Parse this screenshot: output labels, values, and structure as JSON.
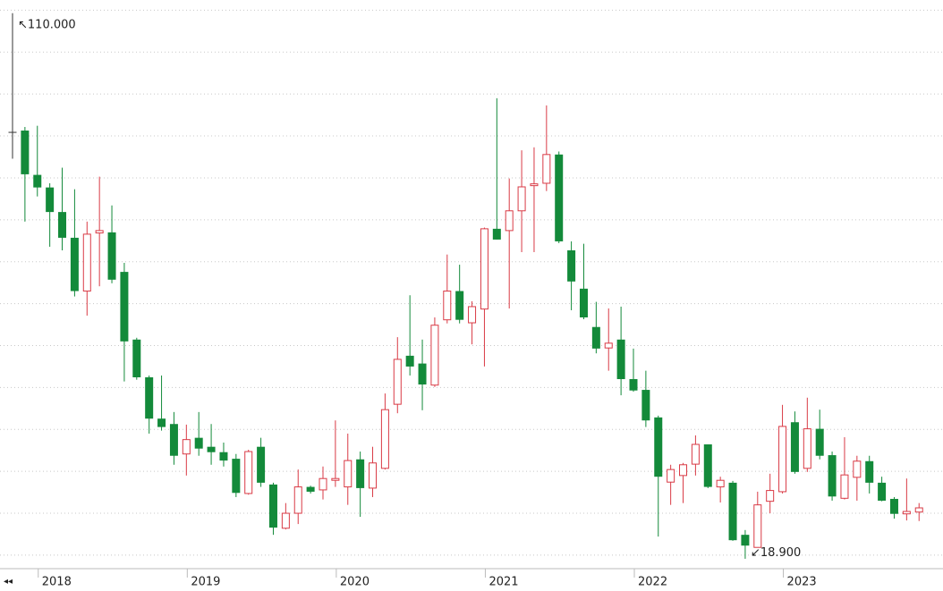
{
  "chart_data": {
    "type": "candlestick",
    "categories": [
      null,
      null,
      "2018",
      null,
      null,
      null,
      null,
      null,
      null,
      null,
      null,
      null,
      null,
      null,
      "2019",
      null,
      null,
      null,
      null,
      null,
      null,
      null,
      null,
      null,
      null,
      null,
      "2020",
      null,
      null,
      null,
      null,
      null,
      null,
      null,
      null,
      null,
      null,
      null,
      "2021",
      null,
      null,
      null,
      null,
      null,
      null,
      null,
      null,
      null,
      null,
      null,
      "2022",
      null,
      null,
      null,
      null,
      null,
      null,
      null,
      null,
      null,
      null,
      null,
      "2023",
      null,
      null,
      null,
      null,
      null,
      null,
      null,
      null,
      null,
      null,
      null
    ],
    "open": [
      90.1,
      90.4,
      83.0,
      80.9,
      76.8,
      72.5,
      63.6,
      73.3,
      73.4,
      66.8,
      55.5,
      49.2,
      42.3,
      41.4,
      36.4,
      39.1,
      37.6,
      36.7,
      35.6,
      29.8,
      37.6,
      31.3,
      24.0,
      26.5,
      30.9,
      30.4,
      32.0,
      30.9,
      35.5,
      30.7,
      34.0,
      44.7,
      52.8,
      51.5,
      47.9,
      58.8,
      63.6,
      58.3,
      60.6,
      74.0,
      73.7,
      77.0,
      81.2,
      81.6,
      86.4,
      70.4,
      64.0,
      57.6,
      54.1,
      55.5,
      48.9,
      47.1,
      42.5,
      31.7,
      32.8,
      34.7,
      38.0,
      30.9,
      31.6,
      22.9,
      20.8,
      28.5,
      30.1,
      41.7,
      34.0,
      40.6,
      36.2,
      29.0,
      32.5,
      35.2,
      31.6,
      28.9,
      26.4,
      26.7
    ],
    "high": [
      110.0,
      91.0,
      91.2,
      81.6,
      84.2,
      80.6,
      75.2,
      82.7,
      77.9,
      68.3,
      55.8,
      49.5,
      49.5,
      43.4,
      41.3,
      43.4,
      41.4,
      38.3,
      36.4,
      37.1,
      39.1,
      31.6,
      28.2,
      33.8,
      31.1,
      34.3,
      42.0,
      39.8,
      36.8,
      37.6,
      46.5,
      55.9,
      62.9,
      55.5,
      59.2,
      69.7,
      68.0,
      61.9,
      74.2,
      95.8,
      82.4,
      87.1,
      87.6,
      94.6,
      86.9,
      71.9,
      71.5,
      61.8,
      60.7,
      61.0,
      54.0,
      50.3,
      42.8,
      34.6,
      34.9,
      39.5,
      38.0,
      32.6,
      31.9,
      23.7,
      30.1,
      33.1,
      44.6,
      43.5,
      45.8,
      43.8,
      36.8,
      39.2,
      36.1,
      36.1,
      32.6,
      29.2,
      32.3,
      28.2
    ],
    "low": [
      85.7,
      75.2,
      79.4,
      71.0,
      70.4,
      62.7,
      59.5,
      64.4,
      64.9,
      48.5,
      48.8,
      39.8,
      40.3,
      34.6,
      32.8,
      36.1,
      34.6,
      34.3,
      29.2,
      29.6,
      30.9,
      22.9,
      23.8,
      24.7,
      29.8,
      28.8,
      30.9,
      27.9,
      25.9,
      29.2,
      33.8,
      43.2,
      49.5,
      43.7,
      47.6,
      58.2,
      58.2,
      54.7,
      51.0,
      72.2,
      60.7,
      70.1,
      70.1,
      80.3,
      71.6,
      60.4,
      58.9,
      53.2,
      50.3,
      46.2,
      46.8,
      40.9,
      22.6,
      27.9,
      28.2,
      32.8,
      30.7,
      28.3,
      21.9,
      18.9,
      20.8,
      26.5,
      29.8,
      33.1,
      33.4,
      35.5,
      28.6,
      28.8,
      28.6,
      29.8,
      28.5,
      25.6,
      25.3,
      25.2
    ],
    "close": [
      90.1,
      83.1,
      80.9,
      76.8,
      72.5,
      63.6,
      73.1,
      73.7,
      65.5,
      55.2,
      49.2,
      42.3,
      40.9,
      36.1,
      38.8,
      37.3,
      36.7,
      35.3,
      29.9,
      36.8,
      31.6,
      24.1,
      26.5,
      30.9,
      30.1,
      32.3,
      32.3,
      35.3,
      30.7,
      34.9,
      43.8,
      52.2,
      51.0,
      48.0,
      57.9,
      63.6,
      58.8,
      61.0,
      74.0,
      72.2,
      77.0,
      81.0,
      81.5,
      86.4,
      71.9,
      65.2,
      59.2,
      54.0,
      54.9,
      48.9,
      47.0,
      42.0,
      32.6,
      33.8,
      34.6,
      38.0,
      30.9,
      32.0,
      22.0,
      21.1,
      27.9,
      30.3,
      41.0,
      33.4,
      40.6,
      36.1,
      29.3,
      32.9,
      35.2,
      31.6,
      28.6,
      26.4,
      26.8,
      27.4
    ],
    "up_color": "#d93a45",
    "down_color": "#138a3a",
    "ylim": [
      17.4,
      112.2
    ],
    "yticks": [
      110.5,
      103.5,
      96.5,
      89.5,
      82.5,
      75.5,
      68.5,
      61.5,
      54.5,
      47.5,
      40.5,
      33.5,
      26.5,
      19.5
    ],
    "grid": true,
    "high_label": "110.000",
    "low_label": "18.900"
  }
}
